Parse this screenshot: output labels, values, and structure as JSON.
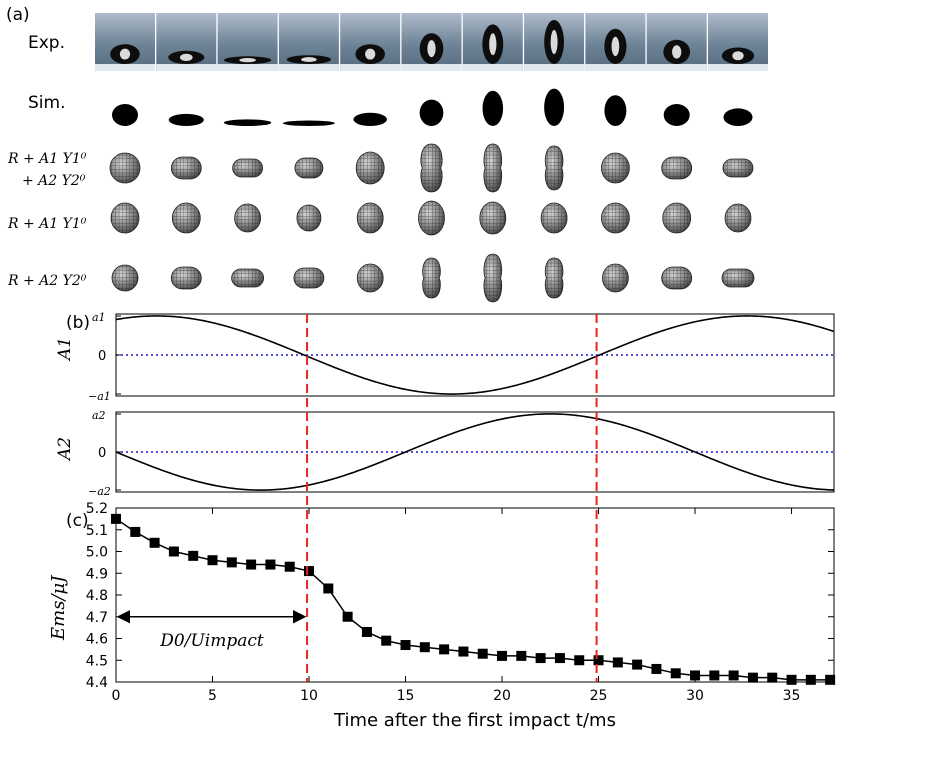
{
  "panel_labels": {
    "a": "(a)",
    "b": "(b)",
    "c": "(c)"
  },
  "row_labels": {
    "exp": "Exp.",
    "sim": "Sim.",
    "combined_line1": "R + A1 Y1⁰",
    "combined_line2": "+ A2 Y2⁰",
    "mode1": "R + A1 Y1⁰",
    "mode2": "R + A2 Y2⁰"
  },
  "frames": {
    "count": 11,
    "exp_scale": [
      0.9,
      0.6,
      0.35,
      0.4,
      0.9,
      1.4,
      1.8,
      2.0,
      1.6,
      1.1,
      0.75
    ],
    "sim_scale": [
      1.0,
      0.55,
      0.3,
      0.25,
      0.6,
      1.2,
      1.6,
      1.7,
      1.4,
      1.0,
      0.8
    ],
    "combined_shape": [
      {
        "rx": 15,
        "ry": 15,
        "a2": 0
      },
      {
        "rx": 15,
        "ry": 11,
        "a2": 0.4
      },
      {
        "rx": 15,
        "ry": 9,
        "a2": 0.6
      },
      {
        "rx": 14,
        "ry": 10,
        "a2": 0.7
      },
      {
        "rx": 14,
        "ry": 16,
        "a2": 0
      },
      {
        "rx": 12,
        "ry": 24,
        "a2": -0.5
      },
      {
        "rx": 10,
        "ry": 24,
        "a2": -0.8
      },
      {
        "rx": 10,
        "ry": 22,
        "a2": -0.6
      },
      {
        "rx": 14,
        "ry": 15,
        "a2": 0
      },
      {
        "rx": 15,
        "ry": 11,
        "a2": 0.4
      },
      {
        "rx": 15,
        "ry": 9,
        "a2": 0.6
      }
    ],
    "mode1_shape": [
      {
        "rx": 14,
        "ry": 15
      },
      {
        "rx": 14,
        "ry": 15
      },
      {
        "rx": 13,
        "ry": 14
      },
      {
        "rx": 12,
        "ry": 13
      },
      {
        "rx": 13,
        "ry": 15
      },
      {
        "rx": 13,
        "ry": 17
      },
      {
        "rx": 13,
        "ry": 16
      },
      {
        "rx": 13,
        "ry": 15
      },
      {
        "rx": 14,
        "ry": 15
      },
      {
        "rx": 14,
        "ry": 15
      },
      {
        "rx": 13,
        "ry": 14
      }
    ],
    "mode2_shape": [
      {
        "rx": 13,
        "ry": 13
      },
      {
        "rx": 15,
        "ry": 11
      },
      {
        "rx": 16,
        "ry": 9
      },
      {
        "rx": 15,
        "ry": 10
      },
      {
        "rx": 13,
        "ry": 14
      },
      {
        "rx": 10,
        "ry": 20
      },
      {
        "rx": 10,
        "ry": 24
      },
      {
        "rx": 10,
        "ry": 20
      },
      {
        "rx": 13,
        "ry": 14
      },
      {
        "rx": 15,
        "ry": 11
      },
      {
        "rx": 16,
        "ry": 9
      }
    ]
  },
  "chart_data": [
    {
      "type": "line",
      "panel": "b-top",
      "ylabel": "A1",
      "ytick_labels": [
        "a1",
        "0",
        "−a1"
      ],
      "xlim": [
        0,
        37.2
      ],
      "ylim": [
        -1.05,
        1.05
      ],
      "amplitude": 1.0,
      "period": 30.6,
      "phase_peak_t": 2.1,
      "baseline": "dotted-blue"
    },
    {
      "type": "line",
      "panel": "b-bottom",
      "ylabel": "A2",
      "ytick_labels": [
        "a2",
        "0",
        "−a2"
      ],
      "xlim": [
        0,
        37.2
      ],
      "ylim": [
        -1.05,
        1.05
      ],
      "amplitude": 1.0,
      "period": 30.0,
      "phase_peak_t": 22.5,
      "baseline": "dotted-blue"
    },
    {
      "type": "line",
      "panel": "c",
      "xlabel": "Time after the first impact t/ms",
      "ylabel": "Ems/μJ",
      "xlim": [
        0,
        37.2
      ],
      "ylim": [
        4.4,
        5.2
      ],
      "xticks": [
        0,
        5,
        10,
        15,
        20,
        25,
        30,
        35
      ],
      "yticks": [
        4.4,
        4.5,
        4.6,
        4.7,
        4.8,
        4.9,
        5.0,
        5.1,
        5.2
      ],
      "x": [
        0,
        1,
        2,
        3,
        4,
        5,
        6,
        7,
        8,
        9,
        10,
        11,
        12,
        13,
        14,
        15,
        16,
        17,
        18,
        19,
        20,
        21,
        22,
        23,
        24,
        25,
        26,
        27,
        28,
        29,
        30,
        31,
        32,
        33,
        34,
        35,
        36,
        37
      ],
      "y": [
        5.15,
        5.09,
        5.04,
        5.0,
        4.98,
        4.96,
        4.95,
        4.94,
        4.94,
        4.93,
        4.91,
        4.83,
        4.7,
        4.63,
        4.59,
        4.57,
        4.56,
        4.55,
        4.54,
        4.53,
        4.52,
        4.52,
        4.51,
        4.51,
        4.5,
        4.5,
        4.49,
        4.48,
        4.46,
        4.44,
        4.43,
        4.43,
        4.43,
        4.42,
        4.42,
        4.41,
        4.41,
        4.41
      ],
      "marker": "square",
      "annotation": {
        "text": "D0/Uimpact",
        "from_t": 0,
        "to_t": 9.9
      },
      "vlines": [
        9.9,
        24.9
      ]
    }
  ],
  "vlines_shared": [
    9.9,
    24.9
  ],
  "colors": {
    "vline": "#e8251c",
    "baseline": "#1a1ad6",
    "curve": "#000000",
    "exp_bg_top": "#a9bac8",
    "exp_bg_bottom": "#5e7488",
    "exp_table": "#dfe9ef",
    "sphere_fill": "#8a8a8a",
    "sphere_grid": "#1e1e1e"
  }
}
